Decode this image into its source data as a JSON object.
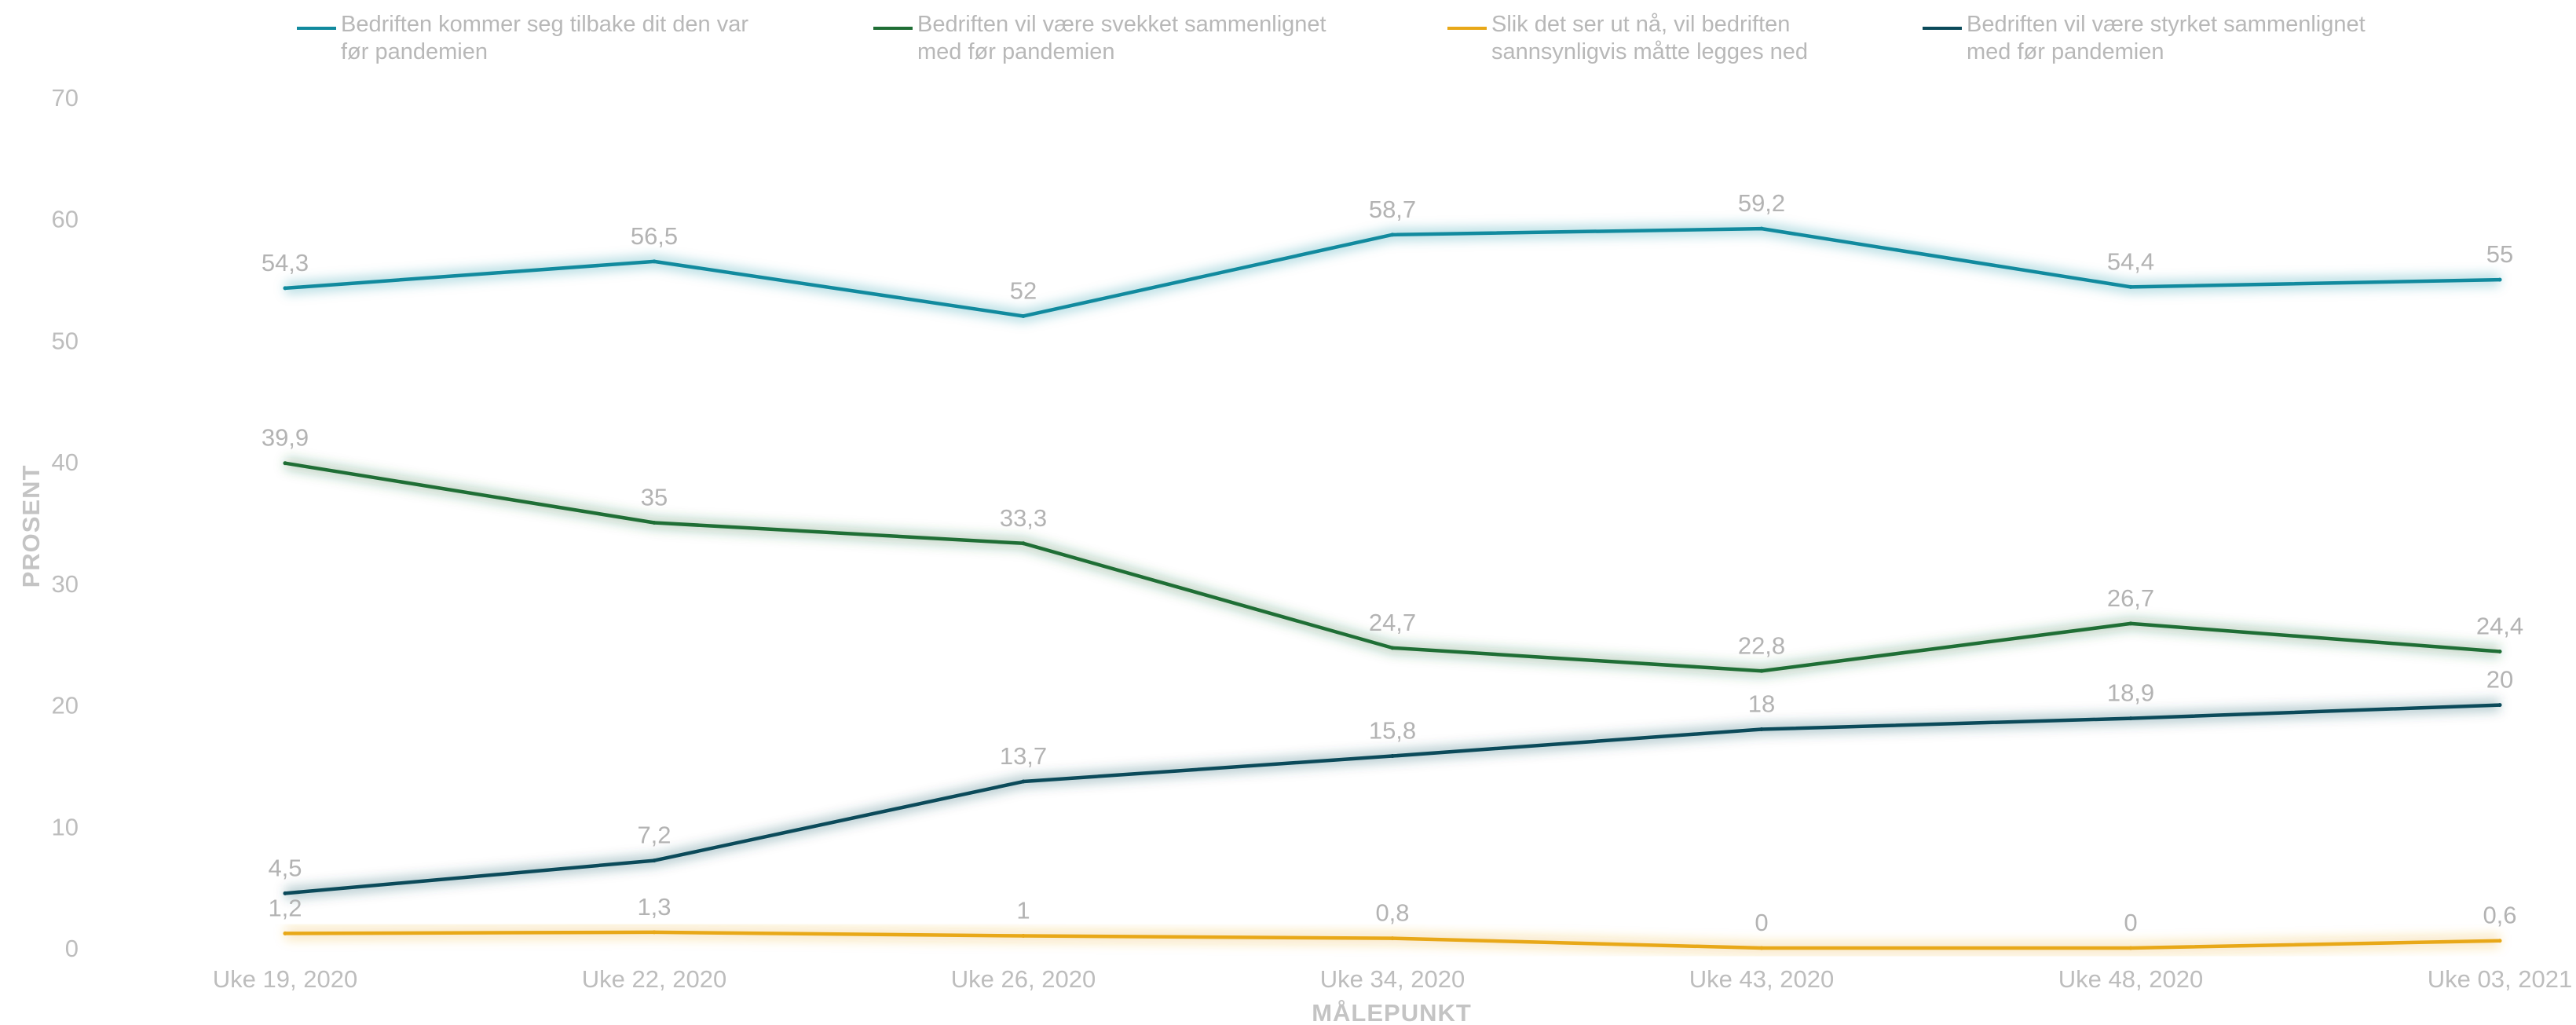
{
  "chart_data": {
    "type": "line",
    "categories": [
      "Uke 19, 2020",
      "Uke 22, 2020",
      "Uke 26, 2020",
      "Uke 34, 2020",
      "Uke 43, 2020",
      "Uke 48, 2020",
      "Uke 03, 2021"
    ],
    "xlabel": "MÅLEPUNKT",
    "ylabel": "PROSENT",
    "ylim": [
      0,
      70
    ],
    "yticks": [
      0,
      10,
      20,
      30,
      40,
      50,
      60,
      70
    ],
    "grid": false,
    "legend_position": "top",
    "series": [
      {
        "name": "Bedriften kommer seg tilbake dit den var\nfør pandemien",
        "color": "#118a9e",
        "values": [
          54.3,
          56.5,
          52,
          58.7,
          59.2,
          54.4,
          55
        ],
        "labels": [
          "54,3",
          "56,5",
          "52",
          "58,7",
          "59,2",
          "54,4",
          "55"
        ]
      },
      {
        "name": "Bedriften vil være svekket sammenlignet\nmed før pandemien",
        "color": "#1f6e35",
        "values": [
          39.9,
          35,
          33.3,
          24.7,
          22.8,
          26.7,
          24.4
        ],
        "labels": [
          "39,9",
          "35",
          "33,3",
          "24,7",
          "22,8",
          "26,7",
          "24,4"
        ]
      },
      {
        "name": "Slik det ser ut nå, vil bedriften\nsannsynligvis måtte legges ned",
        "color": "#e8a818",
        "values": [
          1.2,
          1.3,
          1,
          0.8,
          0,
          0,
          0.6
        ],
        "labels": [
          "1,2",
          "1,3",
          "1",
          "0,8",
          "0",
          "0",
          "0,6"
        ]
      },
      {
        "name": "Bedriften vil være styrket sammenlignet\nmed før pandemien",
        "color": "#0b4a5a",
        "values": [
          4.5,
          7.2,
          13.7,
          15.8,
          18,
          18.9,
          20
        ],
        "labels": [
          "4,5",
          "7,2",
          "13,7",
          "15,8",
          "18",
          "18,9",
          "20"
        ]
      }
    ]
  }
}
